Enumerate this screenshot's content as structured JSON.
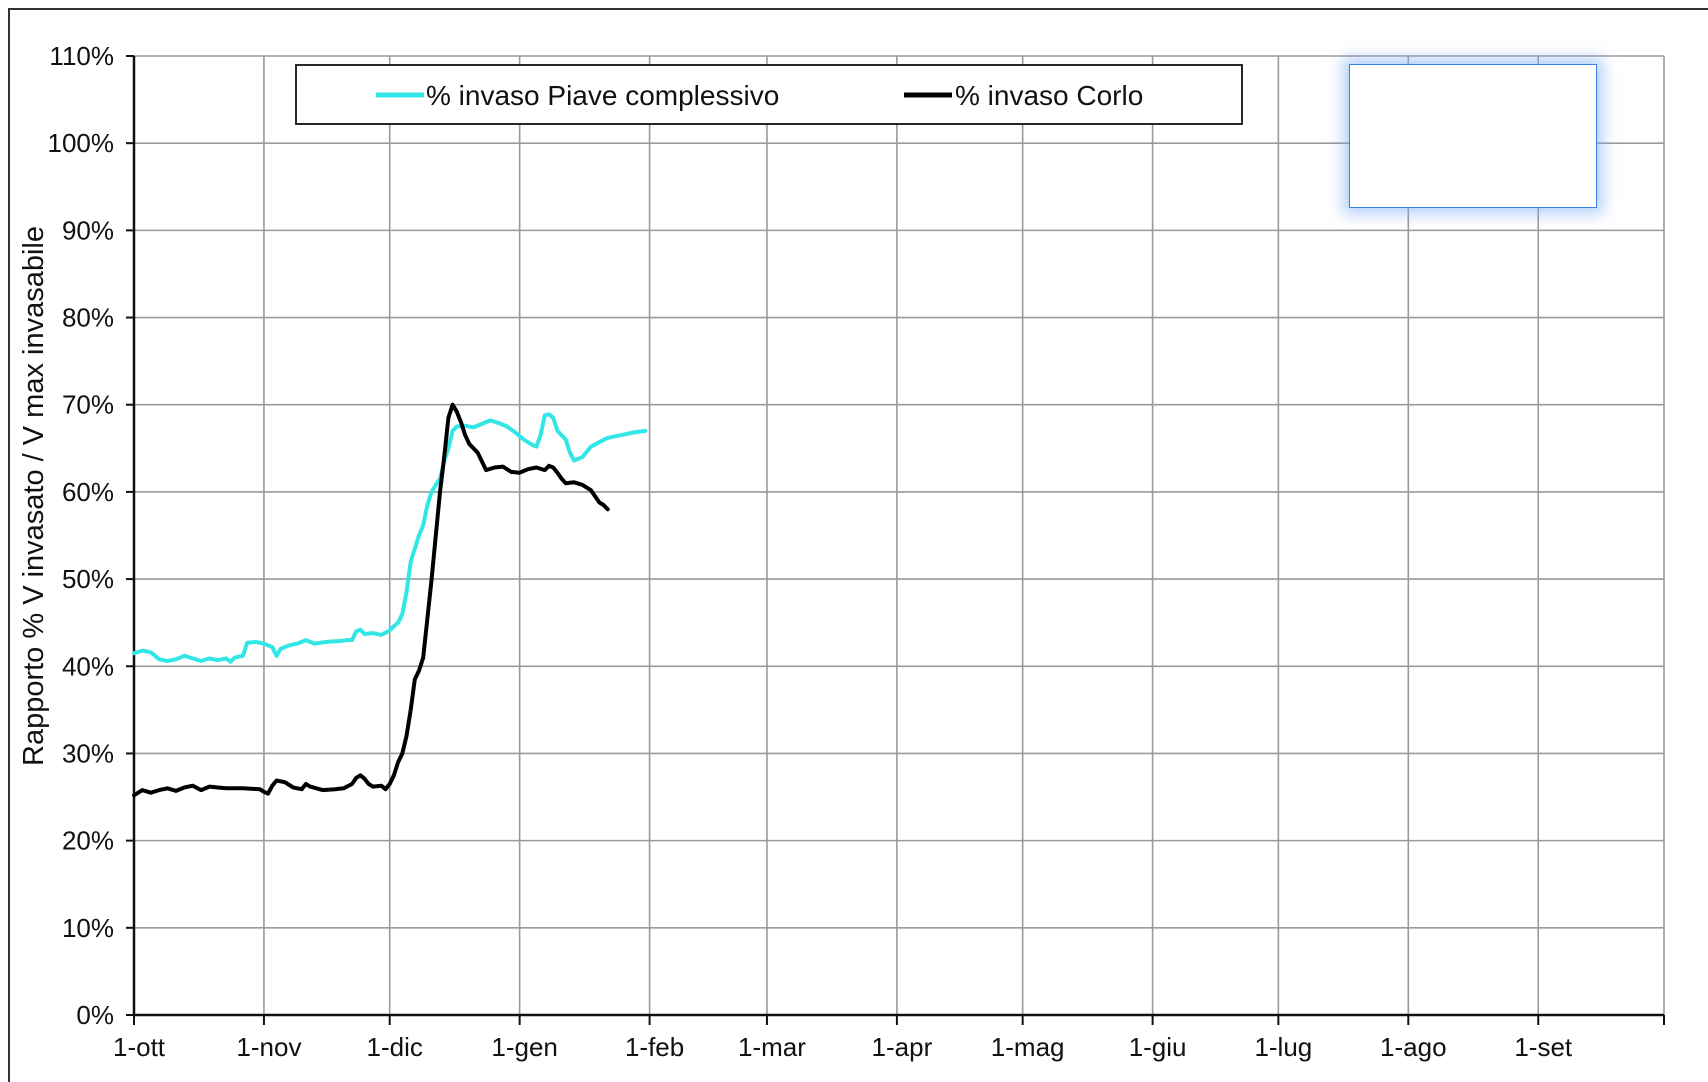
{
  "chart_data": {
    "type": "line",
    "title": "",
    "xlabel": "",
    "ylabel": "Rapporto % V invasato / V max invasabile",
    "ylim": [
      0,
      110
    ],
    "yticks": [
      "0%",
      "10%",
      "20%",
      "30%",
      "40%",
      "50%",
      "60%",
      "70%",
      "80%",
      "90%",
      "100%",
      "110%"
    ],
    "xlim_days": [
      0,
      365
    ],
    "xticks": [
      {
        "label": "1-ott",
        "day": 0
      },
      {
        "label": "1-nov",
        "day": 31
      },
      {
        "label": "1-dic",
        "day": 61
      },
      {
        "label": "1-gen",
        "day": 92
      },
      {
        "label": "1-feb",
        "day": 123
      },
      {
        "label": "1-mar",
        "day": 151
      },
      {
        "label": "1-apr",
        "day": 182
      },
      {
        "label": "1-mag",
        "day": 212
      },
      {
        "label": "1-giu",
        "day": 243
      },
      {
        "label": "1-lug",
        "day": 273
      },
      {
        "label": "1-ago",
        "day": 304
      },
      {
        "label": "1-set",
        "day": 335
      }
    ],
    "grid": true,
    "legend_position": "top",
    "series": [
      {
        "name": "% invaso Piave complessivo",
        "color": "#33e6e6",
        "points": [
          [
            0,
            41.5
          ],
          [
            2,
            41.8
          ],
          [
            4,
            41.6
          ],
          [
            6,
            40.8
          ],
          [
            8,
            40.6
          ],
          [
            10,
            40.8
          ],
          [
            12,
            41.2
          ],
          [
            14,
            40.9
          ],
          [
            16,
            40.6
          ],
          [
            18,
            40.9
          ],
          [
            20,
            40.7
          ],
          [
            22,
            40.9
          ],
          [
            23,
            40.5
          ],
          [
            24,
            41.0
          ],
          [
            26,
            41.2
          ],
          [
            27,
            42.7
          ],
          [
            29,
            42.8
          ],
          [
            31,
            42.6
          ],
          [
            33,
            42.2
          ],
          [
            34,
            41.2
          ],
          [
            35,
            42.0
          ],
          [
            37,
            42.4
          ],
          [
            39,
            42.6
          ],
          [
            41,
            43.0
          ],
          [
            43,
            42.6
          ],
          [
            46,
            42.8
          ],
          [
            49,
            42.9
          ],
          [
            51,
            43.0
          ],
          [
            52,
            43.0
          ],
          [
            53,
            44.0
          ],
          [
            54,
            44.2
          ],
          [
            55,
            43.7
          ],
          [
            57,
            43.8
          ],
          [
            59,
            43.6
          ],
          [
            61,
            44.1
          ],
          [
            62,
            44.6
          ],
          [
            63,
            45.0
          ],
          [
            64,
            46.0
          ],
          [
            65,
            48.5
          ],
          [
            66,
            52.0
          ],
          [
            67,
            53.5
          ],
          [
            68,
            55.0
          ],
          [
            69,
            56.2
          ],
          [
            70,
            58.5
          ],
          [
            71,
            60.0
          ],
          [
            72,
            60.8
          ],
          [
            73,
            61.5
          ],
          [
            74,
            63.5
          ],
          [
            75,
            65.0
          ],
          [
            76,
            67.0
          ],
          [
            77,
            67.5
          ],
          [
            79,
            67.6
          ],
          [
            81,
            67.4
          ],
          [
            83,
            67.8
          ],
          [
            85,
            68.2
          ],
          [
            87,
            67.9
          ],
          [
            89,
            67.5
          ],
          [
            91,
            66.8
          ],
          [
            93,
            66.0
          ],
          [
            95,
            65.4
          ],
          [
            96,
            65.2
          ],
          [
            97,
            66.5
          ],
          [
            98,
            68.8
          ],
          [
            99,
            68.9
          ],
          [
            100,
            68.5
          ],
          [
            101,
            67.0
          ],
          [
            103,
            66.0
          ],
          [
            104,
            64.5
          ],
          [
            105,
            63.6
          ],
          [
            107,
            64.0
          ],
          [
            109,
            65.2
          ],
          [
            111,
            65.7
          ],
          [
            113,
            66.2
          ],
          [
            115,
            66.4
          ],
          [
            117,
            66.6
          ],
          [
            119,
            66.8
          ],
          [
            122,
            67.0
          ]
        ]
      },
      {
        "name": "% invaso Corlo",
        "color": "#000000",
        "points": [
          [
            0,
            25.2
          ],
          [
            2,
            25.8
          ],
          [
            4,
            25.5
          ],
          [
            6,
            25.8
          ],
          [
            8,
            26.0
          ],
          [
            10,
            25.7
          ],
          [
            12,
            26.1
          ],
          [
            14,
            26.3
          ],
          [
            16,
            25.8
          ],
          [
            18,
            26.2
          ],
          [
            20,
            26.1
          ],
          [
            22,
            26.0
          ],
          [
            26,
            26.0
          ],
          [
            30,
            25.9
          ],
          [
            31,
            25.6
          ],
          [
            32,
            25.4
          ],
          [
            33,
            26.3
          ],
          [
            34,
            26.9
          ],
          [
            36,
            26.7
          ],
          [
            38,
            26.1
          ],
          [
            40,
            25.9
          ],
          [
            41,
            26.5
          ],
          [
            42,
            26.2
          ],
          [
            45,
            25.8
          ],
          [
            48,
            25.9
          ],
          [
            50,
            26.0
          ],
          [
            52,
            26.5
          ],
          [
            53,
            27.2
          ],
          [
            54,
            27.5
          ],
          [
            55,
            27.1
          ],
          [
            56,
            26.5
          ],
          [
            57,
            26.2
          ],
          [
            59,
            26.3
          ],
          [
            60,
            25.9
          ],
          [
            61,
            26.5
          ],
          [
            62,
            27.5
          ],
          [
            63,
            29.0
          ],
          [
            64,
            30.0
          ],
          [
            65,
            32.0
          ],
          [
            66,
            35.0
          ],
          [
            67,
            38.5
          ],
          [
            68,
            39.5
          ],
          [
            69,
            41.0
          ],
          [
            70,
            45.5
          ],
          [
            71,
            50.0
          ],
          [
            72,
            55.0
          ],
          [
            73,
            60.0
          ],
          [
            74,
            64.0
          ],
          [
            75,
            68.5
          ],
          [
            76,
            70.0
          ],
          [
            77,
            69.2
          ],
          [
            78,
            68.0
          ],
          [
            79,
            66.5
          ],
          [
            80,
            65.5
          ],
          [
            82,
            64.5
          ],
          [
            83,
            63.5
          ],
          [
            84,
            62.5
          ],
          [
            86,
            62.8
          ],
          [
            88,
            62.9
          ],
          [
            90,
            62.3
          ],
          [
            92,
            62.2
          ],
          [
            94,
            62.6
          ],
          [
            96,
            62.8
          ],
          [
            98,
            62.5
          ],
          [
            99,
            63.0
          ],
          [
            100,
            62.8
          ],
          [
            101,
            62.2
          ],
          [
            102,
            61.5
          ],
          [
            103,
            61.0
          ],
          [
            105,
            61.1
          ],
          [
            107,
            60.8
          ],
          [
            109,
            60.2
          ],
          [
            110,
            59.5
          ],
          [
            111,
            58.8
          ],
          [
            112,
            58.5
          ],
          [
            113,
            58.0
          ]
        ]
      }
    ]
  }
}
